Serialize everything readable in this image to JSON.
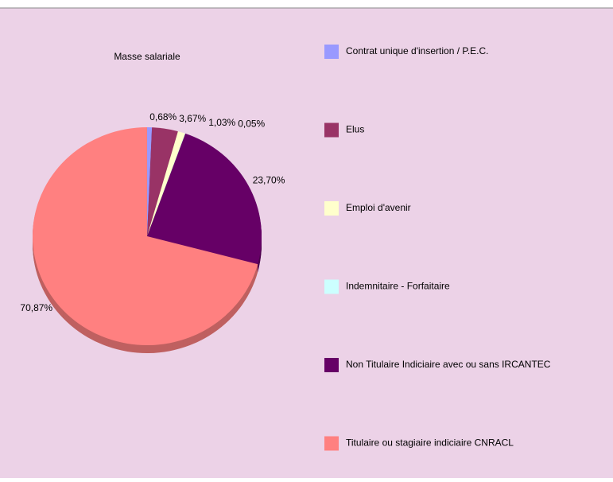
{
  "chart_data": {
    "type": "pie",
    "title": "Masse salariale",
    "categories": [
      "Contrat unique d'insertion / P.E.C.",
      "Elus",
      "Emploi d'avenir",
      "Indemnitaire - Forfaitaire",
      "Non Titulaire Indiciaire avec ou sans IRCANTEC",
      "Titulaire ou stagiaire indiciaire CNRACL"
    ],
    "values": [
      0.68,
      3.67,
      1.03,
      0.05,
      23.7,
      70.87
    ],
    "value_labels": [
      "0,68%",
      "3,67%",
      "1,03%",
      "0,05%",
      "23,70%",
      "70,87%"
    ],
    "colors": [
      "#9999ff",
      "#993366",
      "#ffffcc",
      "#ccffff",
      "#660066",
      "#ff8080"
    ]
  }
}
